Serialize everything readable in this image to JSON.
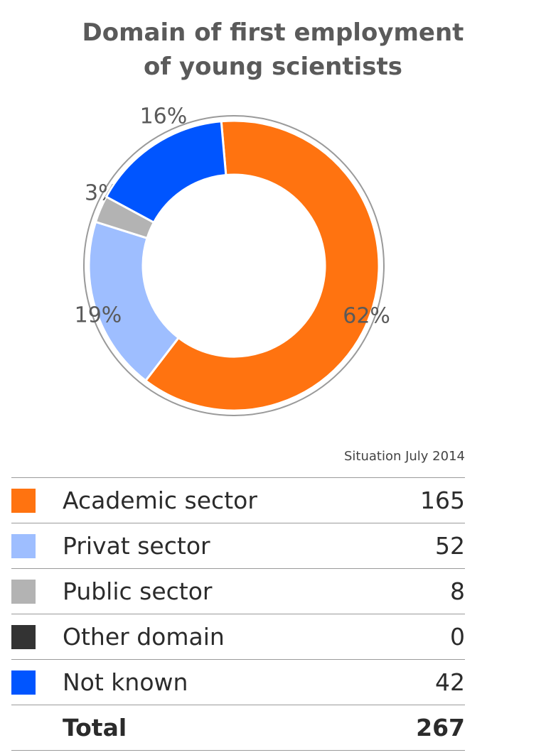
{
  "title": {
    "line1": "Domain of first employment",
    "line2": "of young scientists"
  },
  "chart_data": {
    "type": "pie",
    "title": "Domain of first employment of young scientists",
    "subtitle": "Situation July 2014",
    "slices": [
      {
        "label": "Academic sector",
        "value": 165,
        "percent_label": "62%",
        "color": "#ff7310"
      },
      {
        "label": "Privat sector",
        "value": 52,
        "percent_label": "19%",
        "color": "#9ebeff"
      },
      {
        "label": "Public sector",
        "value": 8,
        "percent_label": "3%",
        "color": "#b3b3b3"
      },
      {
        "label": "Other domain",
        "value": 0,
        "percent_label": "",
        "color": "#333333"
      },
      {
        "label": "Not known",
        "value": 42,
        "percent_label": "16%",
        "color": "#0055ff"
      }
    ],
    "donut": true,
    "total_label": "Total",
    "total_value": 267
  },
  "situation": "Situation July 2014",
  "legend": {
    "rows": [
      {
        "label": "Academic sector",
        "value": "165",
        "color": "#ff7310"
      },
      {
        "label": "Privat sector",
        "value": "52",
        "color": "#9ebeff"
      },
      {
        "label": "Public sector",
        "value": "8",
        "color": "#b3b3b3"
      },
      {
        "label": "Other domain",
        "value": "0",
        "color": "#333333"
      },
      {
        "label": "Not known",
        "value": "42",
        "color": "#0055ff"
      }
    ],
    "total_label": "Total",
    "total_value": "267"
  }
}
